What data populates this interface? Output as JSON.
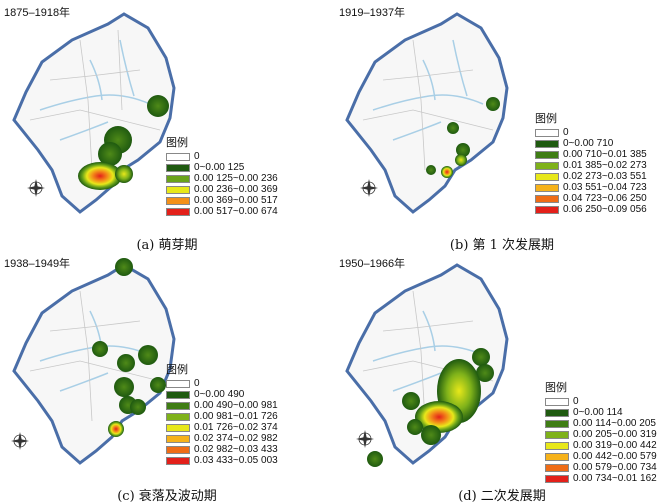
{
  "colors": {
    "land": "#f7f7f7",
    "coast": "#4a6ea8",
    "river": "#a9cfe6",
    "border": "#bdbdbd",
    "sea": "#ffffff",
    "green_dark": "#1f5a10",
    "green_mid": "#4f8a18",
    "green_light": "#8fbe1a",
    "yellow": "#e8e81a",
    "orange": "#f39019",
    "red": "#e3201a"
  },
  "panels": [
    {
      "period": "1875–1918年",
      "caption": "(a) 萌芽期",
      "legend_title": "图例",
      "legend": [
        {
          "label": "0",
          "color": "#ffffff"
        },
        {
          "label": "0~0.00 125",
          "color": "#1f5a10"
        },
        {
          "label": "0.00 125~0.00 236",
          "color": "#6aa31a"
        },
        {
          "label": "0.00 236~0.00 369",
          "color": "#e8e81a"
        },
        {
          "label": "0.00 369~0.00 517",
          "color": "#f39019"
        },
        {
          "label": "0.00 517~0.00 674",
          "color": "#e3201a"
        }
      ],
      "hotspots": [
        {
          "kind": "blob",
          "level": 1
        },
        {
          "kind": "blob",
          "level": 1
        },
        {
          "kind": "blob",
          "level": 1
        },
        {
          "kind": "blob",
          "level": 5
        },
        {
          "kind": "blob",
          "level": 2
        }
      ]
    },
    {
      "period": "1919–1937年",
      "caption": "(b) 第 1 次发展期",
      "legend_title": "图例",
      "legend": [
        {
          "label": "0",
          "color": "#ffffff"
        },
        {
          "label": "0~0.00 710",
          "color": "#1f5a10"
        },
        {
          "label": "0.00 710~0.01 385",
          "color": "#3f7d14"
        },
        {
          "label": "0.01 385~0.02 273",
          "color": "#7fb21a"
        },
        {
          "label": "0.02 273~0.03 551",
          "color": "#e8e81a"
        },
        {
          "label": "0.03 551~0.04 723",
          "color": "#f6b21a"
        },
        {
          "label": "0.04 723~0.06 250",
          "color": "#ef6c16"
        },
        {
          "label": "0.06 250~0.09 056",
          "color": "#e3201a"
        }
      ]
    },
    {
      "period": "1938–1949年",
      "caption": "(c) 衰落及波动期",
      "legend_title": "图例",
      "legend": [
        {
          "label": "0",
          "color": "#ffffff"
        },
        {
          "label": "0~0.00 490",
          "color": "#1f5a10"
        },
        {
          "label": "0.00 490~0.00 981",
          "color": "#3f7d14"
        },
        {
          "label": "0.00 981~0.01 726",
          "color": "#7fb21a"
        },
        {
          "label": "0.01 726~0.02 374",
          "color": "#e8e81a"
        },
        {
          "label": "0.02 374~0.02 982",
          "color": "#f6b21a"
        },
        {
          "label": "0.02 982~0.03 433",
          "color": "#ef6c16"
        },
        {
          "label": "0.03 433~0.05 003",
          "color": "#e3201a"
        }
      ]
    },
    {
      "period": "1950–1966年",
      "caption": "(d) 二次发展期",
      "legend_title": "图例",
      "legend": [
        {
          "label": "0",
          "color": "#ffffff"
        },
        {
          "label": "0~0.00 114",
          "color": "#1f5a10"
        },
        {
          "label": "0.00 114~0.00 205",
          "color": "#3f7d14"
        },
        {
          "label": "0.00 205~0.00 319",
          "color": "#7fb21a"
        },
        {
          "label": "0.00 319~0.00 442",
          "color": "#e8e81a"
        },
        {
          "label": "0.00 442~0.00 579",
          "color": "#f6b21a"
        },
        {
          "label": "0.00 579~0.00 734",
          "color": "#ef6c16"
        },
        {
          "label": "0.00 734~0.01 162",
          "color": "#e3201a"
        }
      ]
    }
  ]
}
